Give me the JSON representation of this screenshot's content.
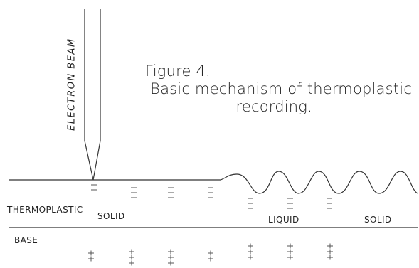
{
  "figure": {
    "number": "Figure 4.",
    "caption_line1": "Basic mechanism of thermoplastic",
    "caption_line2": "recording."
  },
  "beam": {
    "label": "ELECTRON BEAM"
  },
  "layers": {
    "thermoplastic": "THERMOPLASTIC",
    "base": "BASE"
  },
  "regions": {
    "solid_left": "SOLID",
    "liquid": "LIQUID",
    "solid_right": "SOLID"
  }
}
